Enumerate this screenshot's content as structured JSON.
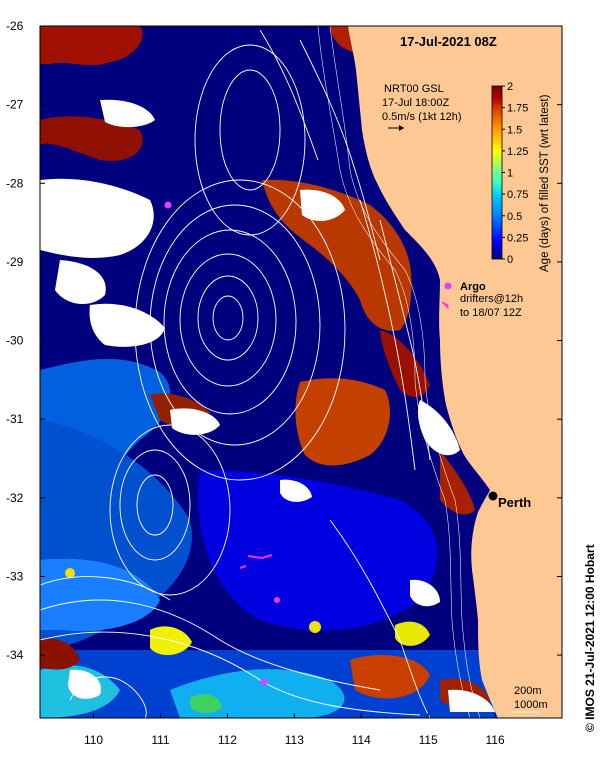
{
  "title": "17-Jul-2021 08Z",
  "current_info": {
    "line1": "NRT00 GSL",
    "line2": "17-Jul 18:00Z",
    "line3": "0.5m/s (1kt 12h)"
  },
  "colorbar": {
    "label": "Age (days) of filled SST (wrt latest)",
    "ticks": [
      "0",
      "0.25",
      "0.5",
      "0.75",
      "1",
      "1.25",
      "1.5",
      "1.75",
      "2"
    ],
    "min": 0,
    "max": 2,
    "colors": [
      "#00007f",
      "#0000ff",
      "#0080ff",
      "#00cfff",
      "#40ffbf",
      "#80ff80",
      "#ffff00",
      "#ff9900",
      "#e05000",
      "#b00000",
      "#7f0000"
    ]
  },
  "legend": {
    "argo": "Argo",
    "drifters_line1": "drifters@12h",
    "drifters_line2": "to 18/07 12Z"
  },
  "city": {
    "name": "Perth",
    "lon": 115.86,
    "lat": -31.95
  },
  "contour_legend": {
    "line1": "200m",
    "line2": "1000m"
  },
  "credit": "© IMOS 21-Jul-2021 12:00 Hobart",
  "axes": {
    "lon_ticks": [
      "110",
      "111",
      "112",
      "113",
      "114",
      "115",
      "116"
    ],
    "lat_ticks": [
      "-26",
      "-27",
      "-28",
      "-29",
      "-30",
      "-31",
      "-32",
      "-33",
      "-34"
    ],
    "lon_range": [
      109.2,
      117.0
    ],
    "lat_range": [
      -34.8,
      -26.0
    ]
  },
  "colors": {
    "land": "#fdc894",
    "ocean_fresh": "#00007f",
    "clouds": "#ffffff",
    "aged": "#b03000"
  }
}
